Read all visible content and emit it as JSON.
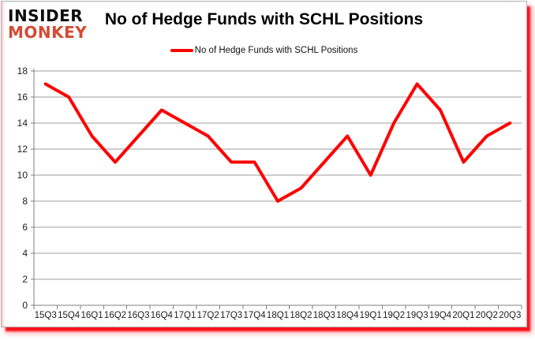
{
  "logo": {
    "line1": "INSIDER",
    "line2": "MONKEY"
  },
  "title": "No of Hedge Funds with SCHL Positions",
  "legend": {
    "label": "No of Hedge Funds with SCHL Positions"
  },
  "colors": {
    "line": "#ff0000",
    "logo_black": "#0d0d0d",
    "logo_red": "#d64a33",
    "grid": "#9c9c9c",
    "axis": "#7f7f7f",
    "text": "#1d1d1d",
    "shadow_red": "#fd0a14"
  },
  "chart_data": {
    "type": "line",
    "title": "No of Hedge Funds with SCHL Positions",
    "xlabel": "",
    "ylabel": "",
    "categories": [
      "15Q3",
      "15Q4",
      "16Q1",
      "16Q2",
      "16Q3",
      "16Q4",
      "17Q1",
      "17Q2",
      "17Q3",
      "17Q4",
      "18Q1",
      "18Q2",
      "18Q3",
      "18Q4",
      "19Q1",
      "19Q2",
      "19Q3",
      "19Q4",
      "20Q1",
      "20Q2",
      "20Q3"
    ],
    "series": [
      {
        "name": "No of Hedge Funds with SCHL Positions",
        "color": "#ff0000",
        "values": [
          17,
          16,
          13,
          11,
          13,
          15,
          14,
          13,
          11,
          11,
          8,
          9,
          11,
          13,
          10,
          14,
          17,
          15,
          11,
          13,
          14
        ]
      }
    ],
    "ylim": [
      0,
      18
    ],
    "ytick_step": 2,
    "grid": true,
    "legend_position": "top-center"
  }
}
